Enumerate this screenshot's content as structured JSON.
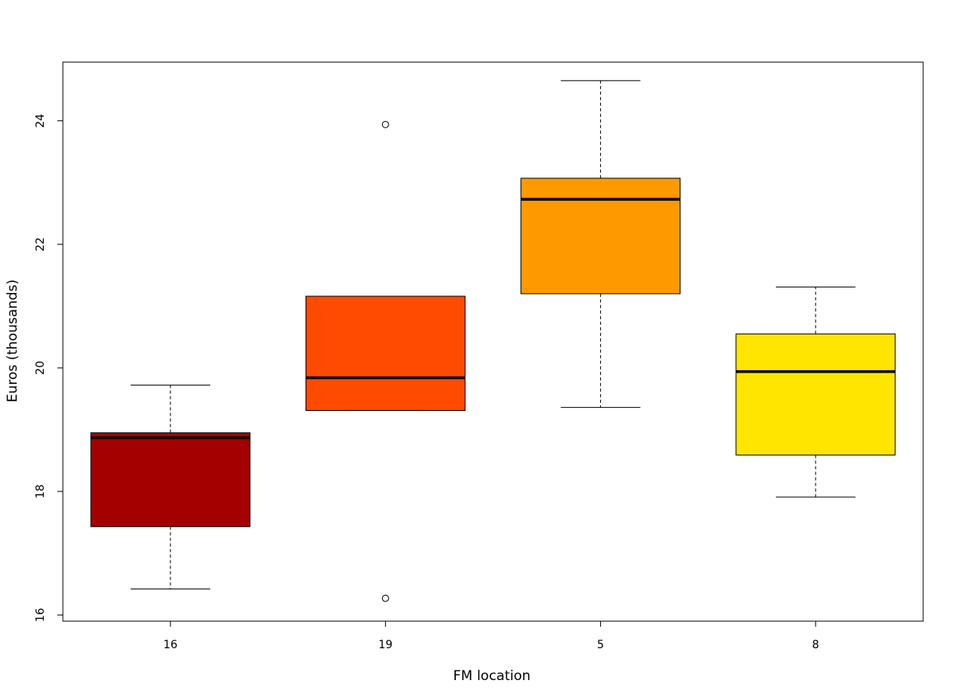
{
  "chart_data": {
    "type": "boxplot",
    "title": "",
    "xlabel": "FM location",
    "ylabel": "Euros (thousands)",
    "categories": [
      "16",
      "19",
      "5",
      "8"
    ],
    "ylim": [
      15.9,
      24.95
    ],
    "yticks": [
      16,
      18,
      20,
      22,
      24
    ],
    "grid": false,
    "boxes": [
      {
        "category": "16",
        "color": "#A50000",
        "whisker_low": 16.42,
        "q1": 17.43,
        "median": 18.87,
        "q3": 18.95,
        "whisker_high": 19.72,
        "outliers": []
      },
      {
        "category": "19",
        "color": "#FF4B00",
        "whisker_low": 19.31,
        "q1": 19.31,
        "median": 19.84,
        "q3": 21.16,
        "whisker_high": 21.16,
        "outliers": [
          23.94,
          16.27
        ]
      },
      {
        "category": "5",
        "color": "#FF9900",
        "whisker_low": 19.36,
        "q1": 21.2,
        "median": 22.73,
        "q3": 23.07,
        "whisker_high": 24.65,
        "outliers": []
      },
      {
        "category": "8",
        "color": "#FFE500",
        "whisker_low": 17.91,
        "q1": 18.59,
        "median": 19.94,
        "q3": 20.55,
        "whisker_high": 21.31,
        "outliers": []
      }
    ]
  }
}
